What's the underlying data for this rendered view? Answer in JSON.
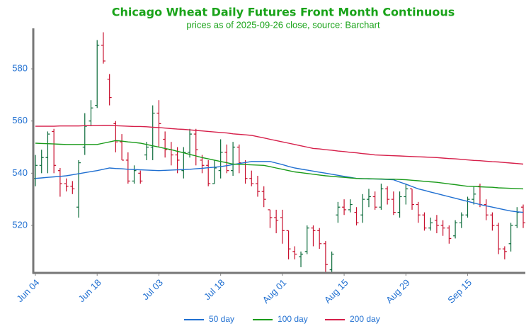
{
  "chart_data": {
    "type": "ohlc",
    "title": "Chicago Wheat Daily Futures Front Month Continuous",
    "subtitle": "prices as of 2025-09-26 close, source: Barchart",
    "categories": [
      "Jun 04",
      null,
      null,
      null,
      null,
      null,
      null,
      null,
      null,
      null,
      "Jun 18",
      null,
      null,
      null,
      null,
      null,
      null,
      null,
      null,
      null,
      "Jul 03",
      null,
      null,
      null,
      null,
      null,
      null,
      null,
      null,
      null,
      "Jul 18",
      null,
      null,
      null,
      null,
      null,
      null,
      null,
      null,
      null,
      "Aug 01",
      null,
      null,
      null,
      null,
      null,
      null,
      null,
      null,
      null,
      "Aug 15",
      null,
      null,
      null,
      null,
      null,
      null,
      null,
      null,
      null,
      "Aug 29",
      null,
      null,
      null,
      null,
      null,
      null,
      null,
      null,
      null,
      "Sep 15",
      null,
      null,
      null,
      null,
      null,
      null,
      null,
      null,
      null
    ],
    "open": [
      538,
      543,
      546,
      556,
      541,
      536,
      535,
      527,
      550,
      560,
      566,
      589,
      576,
      559,
      552,
      545,
      537,
      540,
      547,
      550,
      563,
      553,
      549,
      547,
      541,
      548,
      555,
      545,
      543,
      536,
      541,
      548,
      541,
      550,
      544,
      538,
      536,
      533,
      526,
      523,
      523,
      518,
      510,
      508,
      510,
      519,
      518,
      513,
      503,
      524,
      527,
      526,
      525,
      524,
      530,
      531,
      527,
      534,
      530,
      525,
      531,
      534,
      528,
      524,
      519,
      522,
      520,
      519,
      516,
      521,
      524,
      530,
      535,
      528,
      524,
      520,
      511,
      513,
      520,
      527
    ],
    "high": [
      547,
      549,
      556,
      557,
      542,
      538,
      537,
      545,
      563,
      568,
      591,
      594,
      578,
      560,
      555,
      548,
      543,
      541,
      552,
      566,
      568,
      556,
      552,
      550,
      550,
      557,
      557,
      547,
      545,
      545,
      553,
      551,
      552,
      551,
      545,
      541,
      539,
      535,
      526,
      526,
      526,
      518,
      512,
      510,
      520,
      520,
      519,
      514,
      510,
      529,
      530,
      530,
      527,
      532,
      534,
      533,
      536,
      535,
      533,
      533,
      536,
      534,
      529,
      525,
      523,
      524,
      522,
      520,
      522,
      525,
      531,
      535,
      536,
      530,
      525,
      521,
      512,
      521,
      527,
      528
    ],
    "low": [
      535,
      540,
      540,
      540,
      531,
      533,
      532,
      523,
      547,
      558,
      565,
      582,
      566,
      548,
      545,
      536,
      536,
      536,
      545,
      545,
      550,
      546,
      543,
      540,
      538,
      546,
      543,
      540,
      535,
      536,
      538,
      540,
      539,
      540,
      536,
      535,
      531,
      527,
      519,
      517,
      513,
      507,
      507,
      504,
      509,
      512,
      511,
      502,
      502,
      521,
      524,
      525,
      520,
      521,
      527,
      526,
      526,
      528,
      524,
      523,
      528,
      526,
      521,
      518,
      518,
      517,
      516,
      513,
      515,
      519,
      523,
      528,
      527,
      522,
      518,
      509,
      507,
      510,
      519,
      519
    ],
    "close": [
      543,
      546,
      555,
      543,
      536,
      535,
      534,
      544,
      558,
      565,
      589,
      583,
      569,
      552,
      545,
      537,
      541,
      537,
      550,
      563,
      559,
      549,
      547,
      545,
      548,
      555,
      549,
      543,
      536,
      542,
      548,
      541,
      550,
      544,
      538,
      536,
      533,
      530,
      523,
      522,
      518,
      511,
      509,
      509,
      519,
      518,
      513,
      505,
      509,
      527,
      526,
      528,
      521,
      530,
      531,
      527,
      534,
      530,
      525,
      531,
      534,
      528,
      524,
      519,
      521,
      520,
      519,
      515,
      521,
      524,
      530,
      532,
      528,
      524,
      520,
      511,
      510,
      520,
      525,
      521
    ],
    "up_color": "#0b6b3a",
    "down_color": "#c8102e",
    "series": [
      {
        "name": "50 day",
        "color": "#1f6fd1",
        "values": [
          538,
          538.2,
          538.4,
          538.6,
          538.8,
          539,
          539.4,
          539.8,
          540.2,
          540.6,
          541,
          541.5,
          542,
          541.8,
          541.7,
          541.5,
          541.4,
          541.3,
          541.2,
          541.1,
          541,
          541.1,
          541.2,
          541.3,
          541.4,
          541.5,
          541.7,
          541.9,
          542.1,
          542.3,
          542.5,
          542.9,
          543.3,
          543.7,
          544.1,
          544.5,
          544.5,
          544.5,
          544.5,
          543.9,
          543.3,
          542.6,
          542,
          541.6,
          541.2,
          540.8,
          540.4,
          540,
          539.6,
          539.2,
          538.8,
          538.4,
          538,
          537.9,
          537.8,
          537.8,
          537.7,
          537.6,
          537.5,
          536.6,
          535.8,
          534.9,
          534,
          533.4,
          532.8,
          532.2,
          531.6,
          531,
          530.4,
          529.8,
          529.2,
          528.6,
          528,
          527.5,
          527,
          526.5,
          526,
          525.5,
          525.2,
          525
        ]
      },
      {
        "name": "100 day",
        "color": "#1a9b1a",
        "values": [
          551.5,
          551.4,
          551.3,
          551.2,
          551.1,
          551,
          551,
          551,
          551,
          551,
          551,
          551.5,
          552,
          552.5,
          552.3,
          552,
          551.8,
          551.5,
          551,
          550.5,
          550,
          549.5,
          549,
          548.4,
          547.8,
          547.2,
          546.6,
          546,
          545.5,
          545,
          544.5,
          544,
          543.5,
          543.4,
          543.3,
          543.2,
          543.1,
          543,
          542.5,
          542,
          541.5,
          541,
          540.5,
          540.2,
          539.9,
          539.6,
          539.3,
          539,
          538.8,
          538.6,
          538.4,
          538.2,
          538,
          537.9,
          537.9,
          537.8,
          537.8,
          537.7,
          537.7,
          537.6,
          537.5,
          537.3,
          537.1,
          536.9,
          536.7,
          536.5,
          536.2,
          535.9,
          535.6,
          535.3,
          535,
          534.9,
          534.8,
          534.7,
          534.6,
          534.4,
          534.3,
          534.2,
          534.1,
          534
        ]
      },
      {
        "name": "200 day",
        "color": "#d61f4a",
        "values": [
          558,
          558,
          558,
          558,
          558.1,
          558.1,
          558.1,
          558.1,
          558.2,
          558.2,
          558.2,
          558.3,
          558.3,
          558.2,
          558.1,
          558,
          557.9,
          557.9,
          557.8,
          557.6,
          557.5,
          557.3,
          557.1,
          556.9,
          556.8,
          556.6,
          556.4,
          556.2,
          556,
          555.8,
          555.6,
          555.4,
          555.1,
          554.9,
          554.7,
          554.5,
          554,
          553.5,
          553,
          552.5,
          552,
          551.5,
          551,
          550.5,
          550,
          549.5,
          549.3,
          549,
          548.8,
          548.5,
          548.3,
          548,
          547.8,
          547.5,
          547.3,
          547,
          546.9,
          546.8,
          546.7,
          546.6,
          546.5,
          546.4,
          546.3,
          546.2,
          546.1,
          546,
          545.8,
          545.6,
          545.5,
          545.3,
          545.1,
          544.9,
          544.8,
          544.6,
          544.4,
          544.3,
          544.1,
          543.9,
          543.7,
          543.5
        ]
      }
    ],
    "ylim": [
      501.8,
      595.5
    ],
    "yticks": [
      520,
      540,
      560,
      580
    ],
    "grid": false,
    "legend": "bottom"
  }
}
